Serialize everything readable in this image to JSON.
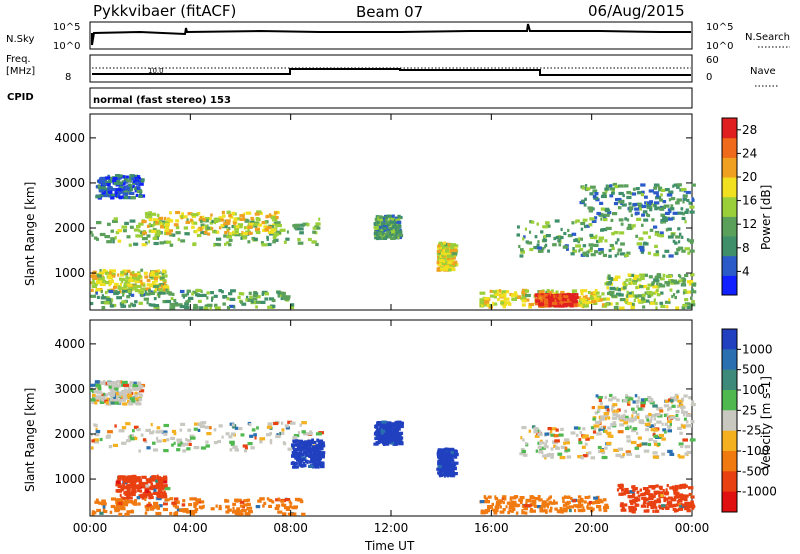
{
  "header": {
    "radar": "Pykkvibaer (fitACF)",
    "beam": "Beam 07",
    "date": "06/Aug/2015"
  },
  "strip": {
    "nsky_label": "N.Sky",
    "nsky_hi": "10^5",
    "nsky_lo": "10^0",
    "nsearch_label": "N.Search",
    "nsearch_hi": "10^5",
    "nsearch_lo": "10^0",
    "freq_label_1": "Freq.",
    "freq_label_2": "[MHz]",
    "freq_hi": "",
    "freq_lo": "8",
    "nave_label": "Nave",
    "nave_hi": "60",
    "nave_lo": "0",
    "cpid_label": "CPID",
    "cpid_text": "normal (fast stereo) 153",
    "freq_small_note": "10.0"
  },
  "chart_data": [
    {
      "type": "heatmap",
      "name": "power",
      "ylabel": "Slant Range [km]",
      "x_ticks": [
        "00:00",
        "04:00",
        "08:00",
        "12:00",
        "16:00",
        "20:00",
        "00:00"
      ],
      "y_ticks": [
        "1000",
        "2000",
        "3000",
        "4000"
      ],
      "xlim_hours": [
        0,
        24
      ],
      "ylim_km": [
        180,
        4530
      ],
      "colorbar": {
        "label": "Power [dB]",
        "ticks": [
          "4",
          "8",
          "12",
          "16",
          "20",
          "24",
          "28"
        ],
        "range": [
          0,
          30
        ],
        "colors": [
          "#1020ff",
          "#2a5bc8",
          "#3f8f6a",
          "#5aa05a",
          "#9bcf3a",
          "#f0e020",
          "#f0a020",
          "#ef6a1a",
          "#e02020"
        ]
      },
      "regions": [
        {
          "t0": 0.0,
          "t1": 9.2,
          "r0": 1650,
          "r1": 2250,
          "level": 12
        },
        {
          "t0": 2.0,
          "t1": 7.5,
          "r0": 1900,
          "r1": 2400,
          "level": 18
        },
        {
          "t0": 0.2,
          "t1": 2.0,
          "r0": 2700,
          "r1": 3200,
          "level": 6
        },
        {
          "t0": 0.0,
          "t1": 3.0,
          "r0": 600,
          "r1": 1100,
          "level": 17
        },
        {
          "t0": 0.0,
          "t1": 8.0,
          "r0": 250,
          "r1": 650,
          "level": 11
        },
        {
          "t0": 11.3,
          "t1": 12.3,
          "r0": 1800,
          "r1": 2300,
          "level": 10
        },
        {
          "t0": 13.8,
          "t1": 14.5,
          "r0": 1100,
          "r1": 1700,
          "level": 18
        },
        {
          "t0": 15.5,
          "t1": 20.5,
          "r0": 280,
          "r1": 650,
          "level": 18
        },
        {
          "t0": 17.7,
          "t1": 19.3,
          "r0": 300,
          "r1": 560,
          "level": 28
        },
        {
          "t0": 17.0,
          "t1": 24.0,
          "r0": 1400,
          "r1": 2200,
          "level": 11
        },
        {
          "t0": 19.5,
          "t1": 24.0,
          "r0": 2200,
          "r1": 3000,
          "level": 9
        },
        {
          "t0": 20.5,
          "t1": 24.0,
          "r0": 250,
          "r1": 1000,
          "level": 14
        }
      ]
    },
    {
      "type": "heatmap",
      "name": "velocity",
      "ylabel": "Slant Range [km]",
      "xlabel": "Time UT",
      "x_ticks": [
        "00:00",
        "04:00",
        "08:00",
        "12:00",
        "16:00",
        "20:00",
        "00:00"
      ],
      "y_ticks": [
        "1000",
        "2000",
        "3000",
        "4000"
      ],
      "xlim_hours": [
        0,
        24
      ],
      "ylim_km": [
        180,
        4530
      ],
      "colorbar": {
        "label": "Velocity [m s-1]",
        "ticks": [
          "1000",
          "500",
          "100",
          "25",
          "-25",
          "-100",
          "-500",
          "-1000"
        ],
        "colors": [
          "#2040c0",
          "#2a70b0",
          "#3e8a7a",
          "#4fb84f",
          "#c8c8c0",
          "#f5b020",
          "#f07a10",
          "#e84010",
          "#e01010"
        ]
      },
      "regions": [
        {
          "t0": 0.0,
          "t1": 9.2,
          "r0": 1650,
          "r1": 2300,
          "vel": 0
        },
        {
          "t0": 0.0,
          "t1": 2.0,
          "r0": 2700,
          "r1": 3200,
          "vel": 0
        },
        {
          "t0": 1.0,
          "t1": 3.0,
          "r0": 600,
          "r1": 1100,
          "vel": -150
        },
        {
          "t0": 0.0,
          "t1": 8.5,
          "r0": 250,
          "r1": 600,
          "vel": -50
        },
        {
          "t0": 8.0,
          "t1": 9.2,
          "r0": 1300,
          "r1": 1900,
          "vel": 600
        },
        {
          "t0": 11.3,
          "t1": 12.3,
          "r0": 1800,
          "r1": 2300,
          "vel": 700
        },
        {
          "t0": 13.8,
          "t1": 14.5,
          "r0": 1100,
          "r1": 1700,
          "vel": 600
        },
        {
          "t0": 15.5,
          "t1": 20.5,
          "r0": 280,
          "r1": 650,
          "vel": -80
        },
        {
          "t0": 17.0,
          "t1": 24.0,
          "r0": 1500,
          "r1": 2200,
          "vel": 0
        },
        {
          "t0": 20.0,
          "t1": 24.0,
          "r0": 2200,
          "r1": 2900,
          "vel": 0
        },
        {
          "t0": 21.0,
          "t1": 24.0,
          "r0": 300,
          "r1": 900,
          "vel": -120
        }
      ]
    }
  ]
}
